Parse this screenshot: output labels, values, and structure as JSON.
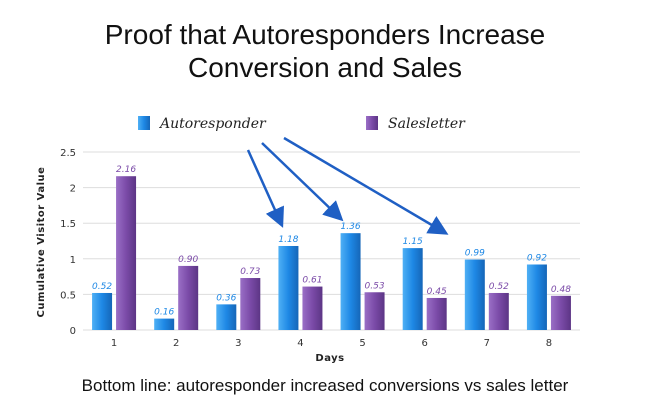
{
  "title_line1": "Proof that Autoresponders Increase",
  "title_line2": "Conversion and Sales",
  "footer": "Bottom line: autoresponder increased conversions vs sales letter",
  "colors": {
    "autoresponder": "#1e88e5",
    "salesletter": "#7b4ba8",
    "arrow": "#1f5fc4",
    "grid": "#dddddd"
  },
  "chart_data": {
    "type": "bar",
    "categories": [
      "1",
      "2",
      "3",
      "4",
      "5",
      "6",
      "7",
      "8"
    ],
    "series": [
      {
        "name": "Autoresponder",
        "values": [
          0.52,
          0.16,
          0.36,
          1.18,
          1.36,
          1.15,
          0.99,
          0.92
        ],
        "labels": [
          "0.52",
          "0.16",
          "0.36",
          "1.18",
          "1.36",
          "1.15",
          "0.99",
          "0.92"
        ]
      },
      {
        "name": "Salesletter",
        "values": [
          2.16,
          0.9,
          0.73,
          0.61,
          0.53,
          0.45,
          0.52,
          0.48
        ],
        "labels": [
          "2.16",
          "0.90",
          "0.73",
          "0.61",
          "0.53",
          "0.45",
          "0.52",
          "0.48"
        ]
      }
    ],
    "xlabel": "Days",
    "ylabel": "Cumulative Visitor Value",
    "ylim": [
      0,
      2.5
    ],
    "yticks": [
      "0",
      "0.5",
      "1",
      "1.5",
      "2",
      "2.5"
    ],
    "grid": true,
    "legend_position": "top",
    "annotation": "arrows from Autoresponder legend pointing to days 4, 5 and 6"
  }
}
